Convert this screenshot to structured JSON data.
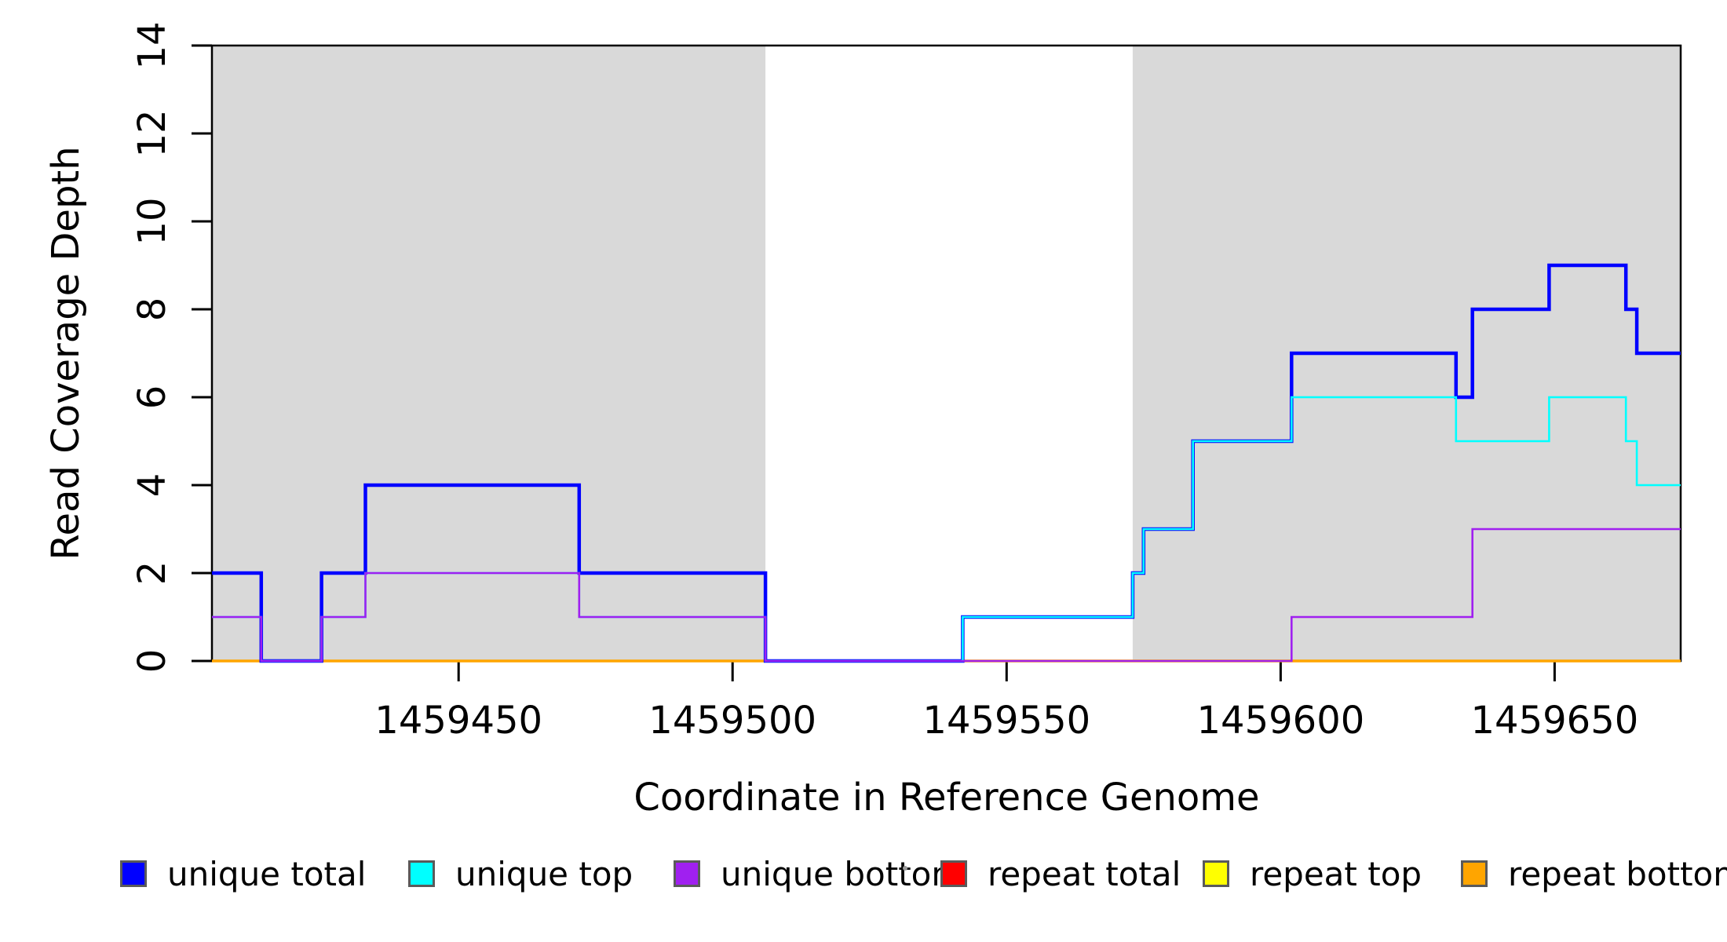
{
  "chart_data": {
    "type": "line",
    "subtype": "step-function-coverage",
    "title": "",
    "xlabel": "Coordinate in Reference Genome",
    "ylabel": "Read Coverage Depth",
    "xlim": [
      1459405,
      1459673
    ],
    "ylim": [
      0,
      14
    ],
    "x_ticks": [
      1459450,
      1459500,
      1459550,
      1459600,
      1459650
    ],
    "y_ticks": [
      0,
      2,
      4,
      6,
      8,
      10,
      12,
      14
    ],
    "grid": false,
    "background_color": "#ffffff",
    "shaded_regions": {
      "color": "#d9d9d9",
      "meaning": "shaded genomic intervals",
      "ranges": [
        [
          1459405,
          1459506
        ],
        [
          1459573,
          1459673
        ]
      ]
    },
    "series": [
      {
        "name": "repeat total",
        "color": "#FF0000",
        "line_width": 2.4,
        "end_x": 1459673,
        "steps": [
          [
            1459405,
            0
          ]
        ]
      },
      {
        "name": "repeat top",
        "color": "#FFFF00",
        "line_width": 2.4,
        "end_x": 1459673,
        "steps": [
          [
            1459405,
            0
          ]
        ]
      },
      {
        "name": "repeat bottom",
        "color": "#FFA500",
        "line_width": 3.6,
        "end_x": 1459673,
        "steps": [
          [
            1459405,
            0
          ]
        ]
      },
      {
        "name": "unique total",
        "color": "#0000FF",
        "line_width": 4.5,
        "end_x": 1459673,
        "steps": [
          [
            1459405,
            2
          ],
          [
            1459414,
            0
          ],
          [
            1459425,
            2
          ],
          [
            1459433,
            4
          ],
          [
            1459472,
            2
          ],
          [
            1459506,
            0
          ],
          [
            1459542,
            1
          ],
          [
            1459573,
            2
          ],
          [
            1459575,
            3
          ],
          [
            1459584,
            5
          ],
          [
            1459602,
            7
          ],
          [
            1459632,
            6
          ],
          [
            1459635,
            8
          ],
          [
            1459649,
            9
          ],
          [
            1459663,
            8
          ],
          [
            1459665,
            7
          ]
        ]
      },
      {
        "name": "unique top",
        "color": "#00FFFF",
        "line_width": 2.6,
        "end_x": 1459673,
        "steps": [
          [
            1459405,
            1
          ],
          [
            1459414,
            0
          ],
          [
            1459425,
            1
          ],
          [
            1459433,
            2
          ],
          [
            1459472,
            1
          ],
          [
            1459506,
            0
          ],
          [
            1459542,
            1
          ],
          [
            1459573,
            2
          ],
          [
            1459575,
            3
          ],
          [
            1459584,
            5
          ],
          [
            1459602,
            6
          ],
          [
            1459632,
            5
          ],
          [
            1459649,
            6
          ],
          [
            1459663,
            5
          ],
          [
            1459665,
            4
          ]
        ]
      },
      {
        "name": "unique bottom",
        "color": "#A020F0",
        "line_width": 2.6,
        "end_x": 1459673,
        "steps": [
          [
            1459405,
            1
          ],
          [
            1459414,
            0
          ],
          [
            1459425,
            1
          ],
          [
            1459433,
            2
          ],
          [
            1459472,
            1
          ],
          [
            1459506,
            0
          ],
          [
            1459602,
            1
          ],
          [
            1459635,
            3
          ]
        ]
      }
    ],
    "legend_position": "bottom"
  },
  "legend": {
    "items": [
      {
        "label": "unique total",
        "color": "#0000FF"
      },
      {
        "label": "unique top",
        "color": "#00FFFF"
      },
      {
        "label": "unique bottom",
        "color": "#A020F0"
      },
      {
        "label": "repeat total",
        "color": "#FF0000"
      },
      {
        "label": "repeat top",
        "color": "#FFFF00"
      },
      {
        "label": "repeat bottom",
        "color": "#FFA500"
      }
    ]
  }
}
